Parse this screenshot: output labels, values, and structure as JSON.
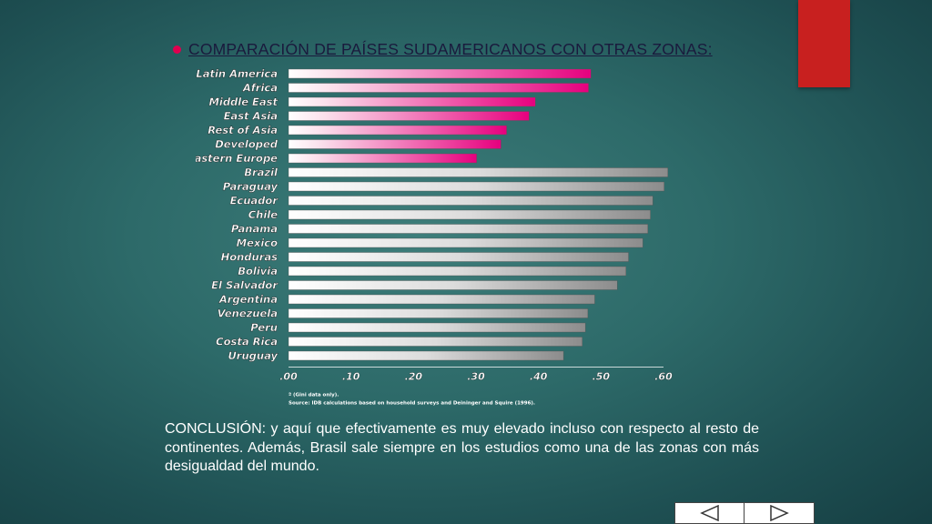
{
  "slide": {
    "title": "COMPARACIÓN DE PAÍSES SUDAMERICANOS CON OTRAS ZONAS:",
    "conclusion": "CONCLUSIÓN: y aquí que efectivamente es muy elevado incluso con respecto al resto de continentes. Además, Brasil sale siempre en los estudios como una de las zonas con más desigualdad del mundo.",
    "nav": {
      "prev_icon": "triangle-left-icon",
      "next_icon": "triangle-right-icon"
    }
  },
  "colors": {
    "accent_bullet": "#e0004f",
    "region_bar": "#e6007e",
    "country_bar": "#8c8c8c",
    "tab_red": "#c8201f"
  },
  "chart_data": {
    "type": "bar",
    "orientation": "horizontal",
    "categories": [
      "Latin America",
      "Africa",
      "Middle East",
      "East Asia",
      "Rest of Asia",
      "Developed",
      "Eastern Europe",
      "Brazil",
      "Paraguay",
      "Ecuador",
      "Chile",
      "Panama",
      "Mexico",
      "Honduras",
      "Bolivia",
      "El Salvador",
      "Argentina",
      "Venezuela",
      "Peru",
      "Costa Rica",
      "Uruguay"
    ],
    "values": [
      0.484,
      0.48,
      0.395,
      0.385,
      0.349,
      0.34,
      0.301,
      0.607,
      0.601,
      0.583,
      0.579,
      0.575,
      0.567,
      0.544,
      0.54,
      0.526,
      0.49,
      0.479,
      0.475,
      0.47,
      0.44
    ],
    "groups": [
      "region",
      "region",
      "region",
      "region",
      "region",
      "region",
      "region",
      "country",
      "country",
      "country",
      "country",
      "country",
      "country",
      "country",
      "country",
      "country",
      "country",
      "country",
      "country",
      "country",
      "country"
    ],
    "xlim": [
      0,
      0.6
    ],
    "ticks": [
      ".00",
      ".10",
      ".20",
      ".30",
      ".40",
      ".50",
      ".60"
    ],
    "notes": [
      "ª (Gini data only).",
      "Source: IDB calculations based on household surveys and Deininger and Squire (1996)."
    ]
  }
}
